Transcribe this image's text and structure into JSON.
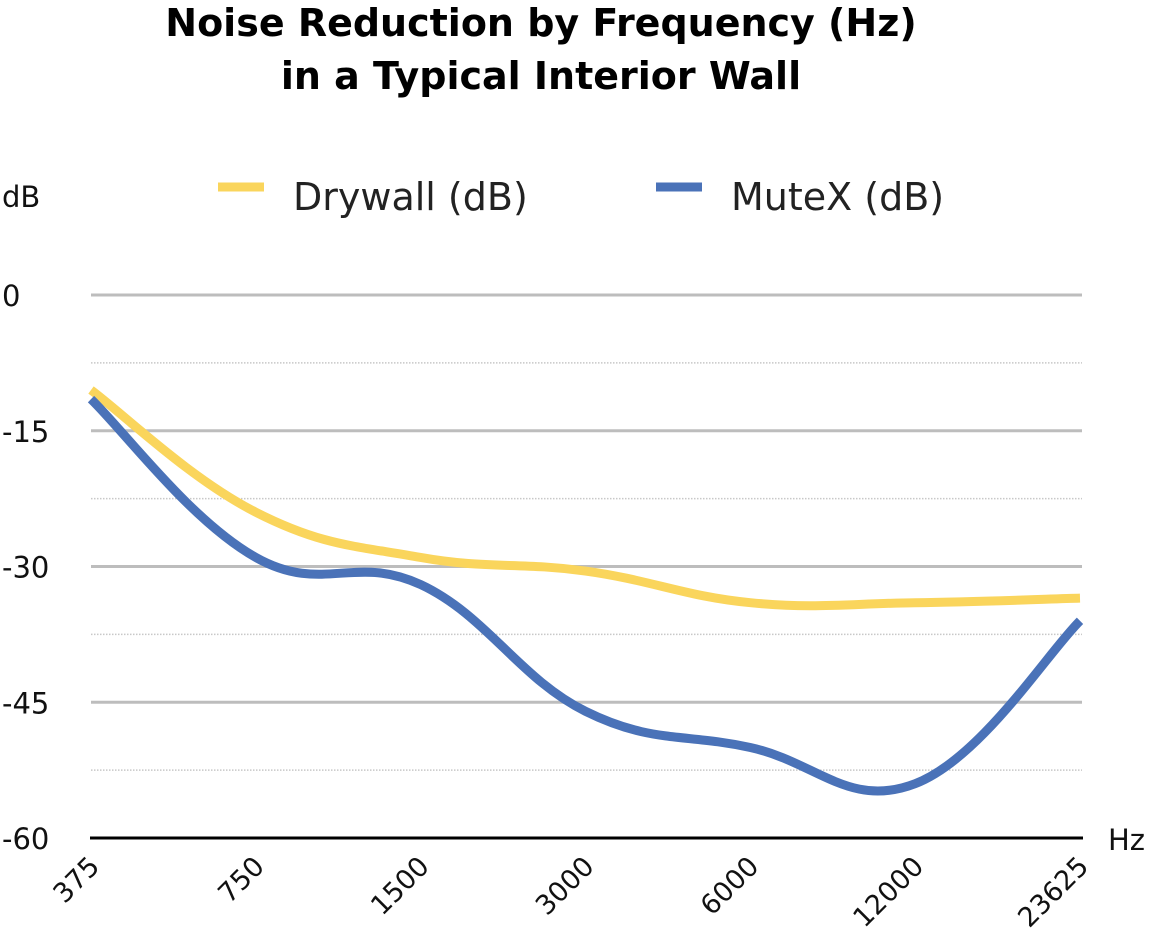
{
  "chart_data": {
    "type": "line",
    "title_lines": [
      "Noise Reduction by Frequency (Hz)",
      "in a Typical Interior Wall"
    ],
    "ylabel": "dB",
    "xlabel": "Hz",
    "ylim": [
      -60,
      0
    ],
    "yticks": [
      0,
      -15,
      -30,
      -45,
      -60
    ],
    "categories": [
      "375",
      "750",
      "1500",
      "3000",
      "6000",
      "12000",
      "23625"
    ],
    "grid": true,
    "legend_position": "top",
    "series": [
      {
        "name": "Drywall (dB)",
        "color": "#FAD55C",
        "values": [
          -10.5,
          -24,
          -29,
          -30.5,
          -34,
          -34,
          -33.5
        ]
      },
      {
        "name": "MuteX (dB)",
        "color": "#4A72B8",
        "values": [
          -11.5,
          -29,
          -32,
          -46,
          -50,
          -54,
          -36
        ]
      }
    ]
  }
}
